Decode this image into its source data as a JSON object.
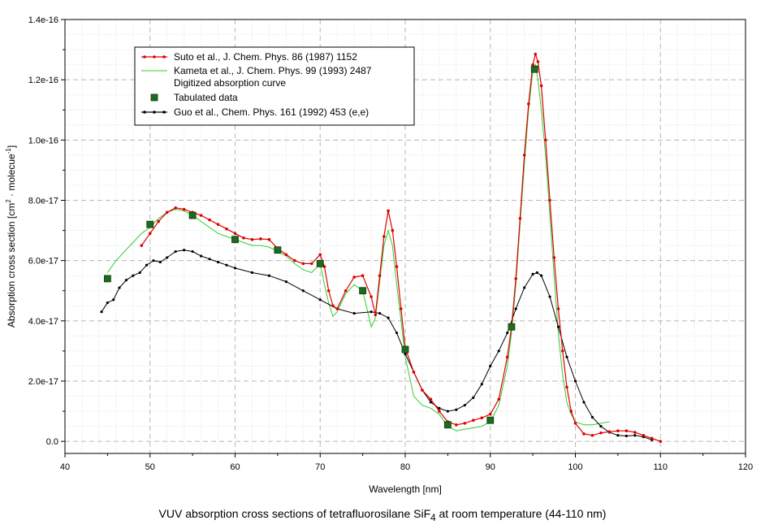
{
  "caption": {
    "pre": "VUV absorption cross sections of tetrafluorosilane SiF",
    "sub": "4",
    "post": " at room temperature (44-110 nm)"
  },
  "chart_data": {
    "type": "line",
    "xlabel": "Wavelength [nm]",
    "ylabel_main": "Absorption cross section [cm",
    "ylabel_sup1": "2",
    "ylabel_mid": " · molecue",
    "ylabel_sup2": "-1",
    "ylabel_end": "]",
    "xlim": [
      40,
      120
    ],
    "ylim": [
      -4e-18,
      1.4e-16
    ],
    "xticks": [
      40,
      50,
      60,
      70,
      80,
      90,
      100,
      110,
      120
    ],
    "yticks": [
      0,
      2e-17,
      4e-17,
      6e-17,
      8e-17,
      1e-16,
      1.2e-16,
      1.4e-16
    ],
    "ytick_labels": [
      "0.0",
      "2.0e-17",
      "4.0e-17",
      "6.0e-17",
      "8.0e-17",
      "1.0e-16",
      "1.2e-16",
      "1.4e-16"
    ],
    "xtick_labels": [
      "40",
      "50",
      "60",
      "70",
      "80",
      "90",
      "100",
      "110",
      "120"
    ],
    "grid": true,
    "legend_position": "top-left",
    "legend": [
      {
        "label": "Suto et al., J. Chem. Phys. 86 (1987) 1152",
        "color": "#e00000",
        "marker": "dot"
      },
      {
        "label": "Kameta et al., J. Chem. Phys. 99 (1993) 2487",
        "color": "#33cc33",
        "marker": "none"
      },
      {
        "label": "Digitized absorption curve",
        "color": "",
        "marker": "none"
      },
      {
        "label": "Tabulated data",
        "color": "#1e6b1e",
        "marker": "square"
      },
      {
        "label": "Guo et al., Chem. Phys. 161 (1992) 453 (e,e)",
        "color": "#000000",
        "marker": "dot"
      }
    ],
    "series": [
      {
        "name": "Suto et al., J. Chem. Phys. 86 (1987) 1152",
        "color": "#e00000",
        "x": [
          49,
          50,
          51,
          52,
          53,
          54,
          55,
          56,
          57,
          58,
          59,
          60,
          61,
          62,
          63,
          64,
          65,
          66,
          67,
          68,
          69,
          70,
          70.5,
          71,
          71.5,
          72,
          73,
          74,
          75,
          76,
          76.5,
          77,
          77.5,
          78,
          78.5,
          79,
          79.5,
          80,
          81,
          82,
          83,
          84,
          85,
          86,
          87,
          88,
          89,
          90,
          91,
          92,
          92.5,
          93,
          93.5,
          94,
          94.5,
          95,
          95.3,
          95.6,
          96,
          96.5,
          97,
          97.5,
          98,
          98.5,
          99,
          99.5,
          100,
          101,
          102,
          103,
          104,
          105,
          106,
          107,
          108,
          109,
          110
        ],
        "y": [
          6.5e-17,
          6.9e-17,
          7.3e-17,
          7.6e-17,
          7.75e-17,
          7.7e-17,
          7.6e-17,
          7.5e-17,
          7.35e-17,
          7.2e-17,
          7.05e-17,
          6.9e-17,
          6.75e-17,
          6.7e-17,
          6.72e-17,
          6.7e-17,
          6.4e-17,
          6.2e-17,
          6e-17,
          5.9e-17,
          5.9e-17,
          6.2e-17,
          5.8e-17,
          5e-17,
          4.5e-17,
          4.4e-17,
          5e-17,
          5.45e-17,
          5.5e-17,
          4.8e-17,
          4.2e-17,
          5.5e-17,
          6.8e-17,
          7.65e-17,
          7e-17,
          5.8e-17,
          4.4e-17,
          3.1e-17,
          2.3e-17,
          1.7e-17,
          1.4e-17,
          1e-17,
          6.5e-18,
          5.5e-18,
          6e-18,
          7e-18,
          7.8e-18,
          9e-18,
          1.4e-17,
          2.8e-17,
          3.8e-17,
          5.4e-17,
          7.4e-17,
          9.5e-17,
          1.12e-16,
          1.25e-16,
          1.285e-16,
          1.26e-16,
          1.18e-16,
          1e-16,
          8e-17,
          6.1e-17,
          4.4e-17,
          3e-17,
          1.8e-17,
          1e-17,
          6e-18,
          2.5e-18,
          2e-18,
          2.8e-18,
          3.2e-18,
          3.5e-18,
          3.5e-18,
          3e-18,
          2e-18,
          1e-18,
          0.0
        ]
      },
      {
        "name": "Kameta et al., J. Chem. Phys. 99 (1993) 2487",
        "color": "#33cc33",
        "x": [
          45,
          46,
          47,
          48,
          49,
          50,
          51,
          52,
          53,
          54,
          55,
          56,
          57,
          58,
          59,
          60,
          61,
          62,
          63,
          64,
          65,
          66,
          67,
          68,
          69,
          70,
          70.5,
          71,
          71.5,
          72,
          73,
          74,
          75,
          75.5,
          76,
          76.5,
          77,
          77.5,
          78,
          78.5,
          79,
          79.5,
          80,
          81,
          82,
          83,
          84,
          85,
          86,
          87,
          88,
          89,
          90,
          91,
          92,
          92.5,
          93,
          93.5,
          94,
          94.5,
          95,
          95.3,
          95.6,
          96,
          96.5,
          97,
          97.5,
          98,
          98.5,
          99,
          99.5,
          100,
          101,
          102,
          103,
          104
        ],
        "y": [
          5.6e-17,
          6e-17,
          6.3e-17,
          6.6e-17,
          6.9e-17,
          7.1e-17,
          7.4e-17,
          7.6e-17,
          7.7e-17,
          7.65e-17,
          7.5e-17,
          7.3e-17,
          7.1e-17,
          6.9e-17,
          6.8e-17,
          6.7e-17,
          6.6e-17,
          6.5e-17,
          6.5e-17,
          6.45e-17,
          6.3e-17,
          6.15e-17,
          5.9e-17,
          5.7e-17,
          5.6e-17,
          5.9e-17,
          5.2e-17,
          4.6e-17,
          4.15e-17,
          4.3e-17,
          4.9e-17,
          5.2e-17,
          5e-17,
          4.4e-17,
          3.8e-17,
          4.1e-17,
          5.3e-17,
          6.5e-17,
          7e-17,
          6.5e-17,
          5.2e-17,
          4e-17,
          2.8e-17,
          1.5e-17,
          1.2e-17,
          1.1e-17,
          9e-18,
          5e-18,
          3.5e-18,
          4e-18,
          4.5e-18,
          5e-18,
          6.5e-18,
          1.2e-17,
          2.5e-17,
          3.6e-17,
          5.2e-17,
          7.2e-17,
          9.2e-17,
          1.1e-16,
          1.23e-16,
          1.25e-16,
          1.2e-16,
          1.1e-16,
          9.5e-17,
          7.5e-17,
          5.5e-17,
          3.6e-17,
          2.2e-17,
          1.3e-17,
          9e-18,
          6.5e-18,
          5.5e-18,
          5.5e-18,
          6e-18,
          6.5e-18
        ]
      },
      {
        "name": "Tabulated data",
        "color": "#1e6b1e",
        "x": [
          45,
          50,
          55,
          60,
          65,
          70,
          75,
          80,
          85,
          90,
          92.5,
          95.2
        ],
        "y": [
          5.4e-17,
          7.2e-17,
          7.5e-17,
          6.7e-17,
          6.35e-17,
          5.9e-17,
          5e-17,
          3.05e-17,
          5.5e-18,
          7e-18,
          3.8e-17,
          1.235e-16
        ]
      },
      {
        "name": "Guo et al., Chem. Phys. 161 (1992) 453 (e,e)",
        "color": "#000000",
        "x": [
          44.3,
          45,
          45.7,
          46.4,
          47.2,
          48,
          48.8,
          49.6,
          50.4,
          51.2,
          52,
          53,
          54,
          55,
          56,
          57,
          58,
          59,
          60,
          62,
          64,
          66,
          68,
          70,
          72,
          74,
          76,
          77,
          78,
          79,
          80,
          81,
          82,
          83,
          84,
          85,
          86,
          87,
          88,
          89,
          90,
          91,
          92,
          93,
          94,
          95,
          95.5,
          96,
          97,
          98,
          99,
          100,
          101,
          102,
          103,
          104,
          105,
          106,
          107,
          108,
          109
        ],
        "y": [
          4.3e-17,
          4.6e-17,
          4.7e-17,
          5.1e-17,
          5.35e-17,
          5.5e-17,
          5.6e-17,
          5.85e-17,
          6e-17,
          5.95e-17,
          6.1e-17,
          6.3e-17,
          6.35e-17,
          6.3e-17,
          6.15e-17,
          6.05e-17,
          5.95e-17,
          5.85e-17,
          5.75e-17,
          5.6e-17,
          5.5e-17,
          5.3e-17,
          5e-17,
          4.7e-17,
          4.4e-17,
          4.25e-17,
          4.3e-17,
          4.25e-17,
          4.1e-17,
          3.6e-17,
          2.9e-17,
          2.3e-17,
          1.7e-17,
          1.3e-17,
          1.1e-17,
          1e-17,
          1.05e-17,
          1.2e-17,
          1.45e-17,
          1.9e-17,
          2.5e-17,
          3e-17,
          3.6e-17,
          4.4e-17,
          5.1e-17,
          5.55e-17,
          5.6e-17,
          5.5e-17,
          4.8e-17,
          3.8e-17,
          2.8e-17,
          2e-17,
          1.3e-17,
          8e-18,
          5e-18,
          3e-18,
          2e-18,
          1.8e-18,
          2e-18,
          1.5e-18,
          5e-19
        ]
      }
    ]
  }
}
